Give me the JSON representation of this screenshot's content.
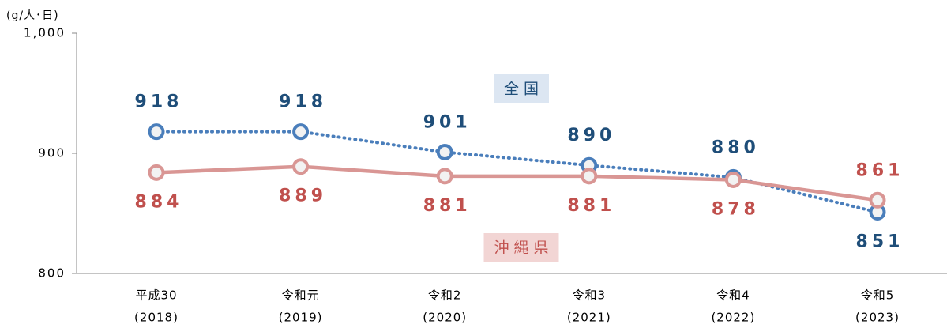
{
  "chart_data": {
    "type": "line",
    "y_unit": "(g/人･日)",
    "categories": [
      [
        "平成30",
        "(2018)"
      ],
      [
        "令和元",
        "(2019)"
      ],
      [
        "令和2",
        "(2020)"
      ],
      [
        "令和3",
        "(2021)"
      ],
      [
        "令和4",
        "(2022)"
      ],
      [
        "令和5",
        "(2023)"
      ]
    ],
    "series": [
      {
        "name": "全国",
        "color": "#4a7ebb",
        "label_color": "#1f4e79",
        "legend_bg": "#dce6f2",
        "dash": true,
        "values": [
          918,
          918,
          901,
          890,
          880,
          851
        ]
      },
      {
        "name": "沖縄県",
        "color": "#d99694",
        "label_color": "#c0504d",
        "legend_bg": "#f2d5d4",
        "dash": false,
        "values": [
          884,
          889,
          881,
          881,
          878,
          861
        ]
      }
    ],
    "ylim": [
      800,
      1000
    ],
    "yticks": [
      800,
      900,
      {
        "value": 1000,
        "label": "1,000"
      }
    ]
  }
}
